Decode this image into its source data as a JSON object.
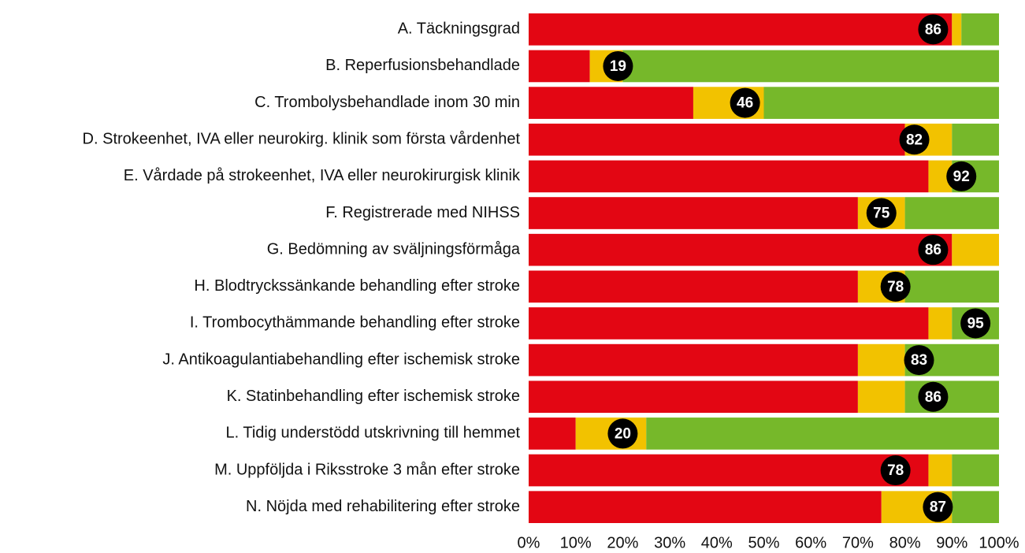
{
  "chart_data": {
    "type": "stacked-bar-horizontal",
    "categories": [
      "A. Täckningsgrad",
      "B. Reperfusionsbehandlade",
      "C. Trombolysbehandlade inom 30 min",
      "D. Strokeenhet, IVA eller neurokirg. klinik som första vårdenhet",
      "E. Vårdade på strokeenhet, IVA eller neurokirurgisk klinik",
      "F. Registrerade med NIHSS",
      "G. Bedömning av sväljningsförmåga",
      "H. Blodtryckssänkande behandling efter stroke",
      "I. Trombocythämmande behandling efter stroke",
      "J. Antikoagulantiabehandling efter ischemisk stroke",
      "K. Statinbehandling efter ischemisk stroke",
      "L. Tidig understödd utskrivning till hemmet",
      "M. Uppföljda i Riksstroke 3 mån efter stroke",
      "N. Nöjda med rehabilitering efter stroke"
    ],
    "series": [
      {
        "color": "#e30613",
        "values": [
          90,
          13,
          35,
          80,
          85,
          70,
          90,
          70,
          85,
          70,
          70,
          10,
          85,
          75
        ]
      },
      {
        "color": "#f2c200",
        "values": [
          2,
          7,
          15,
          10,
          5,
          10,
          10,
          10,
          5,
          10,
          10,
          15,
          5,
          15
        ]
      },
      {
        "color": "#76b82a",
        "values": [
          8,
          80,
          50,
          10,
          10,
          20,
          0,
          20,
          10,
          20,
          20,
          75,
          10,
          10
        ]
      }
    ],
    "markers": {
      "color": "#000000",
      "text_color": "#ffffff",
      "values": [
        86,
        19,
        46,
        82,
        92,
        75,
        86,
        78,
        95,
        83,
        86,
        20,
        78,
        87
      ]
    },
    "xlim": [
      0,
      100
    ],
    "xticks": [
      {
        "value": 0,
        "label": "0%"
      },
      {
        "value": 10,
        "label": "10%"
      },
      {
        "value": 20,
        "label": "20%"
      },
      {
        "value": 30,
        "label": "30%"
      },
      {
        "value": 40,
        "label": "40%"
      },
      {
        "value": 50,
        "label": "50%"
      },
      {
        "value": 60,
        "label": "60%"
      },
      {
        "value": 70,
        "label": "70%"
      },
      {
        "value": 80,
        "label": "80%"
      },
      {
        "value": 90,
        "label": "90%"
      },
      {
        "value": 100,
        "label": "100%"
      }
    ],
    "grid": false
  }
}
